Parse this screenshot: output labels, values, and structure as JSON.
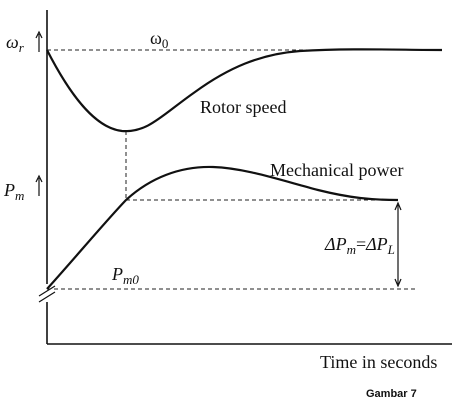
{
  "labels": {
    "omega_r_main": "ω",
    "omega_r_sub": "r",
    "omega0_main": "ω",
    "omega0_sub": "0",
    "rotor_speed": "Rotor speed",
    "mechanical_power": "Mechanical power",
    "pm_main": "P",
    "pm_sub": "m",
    "pm0_main": "P",
    "pm0_sub": "m0",
    "delta_pm_main": "ΔP",
    "delta_pm_sub": "m",
    "equals": "=",
    "delta_pl_main": "ΔP",
    "delta_pl_sub": "L",
    "x_axis_title": "Time in seconds",
    "caption": "Gambar 7"
  }
}
